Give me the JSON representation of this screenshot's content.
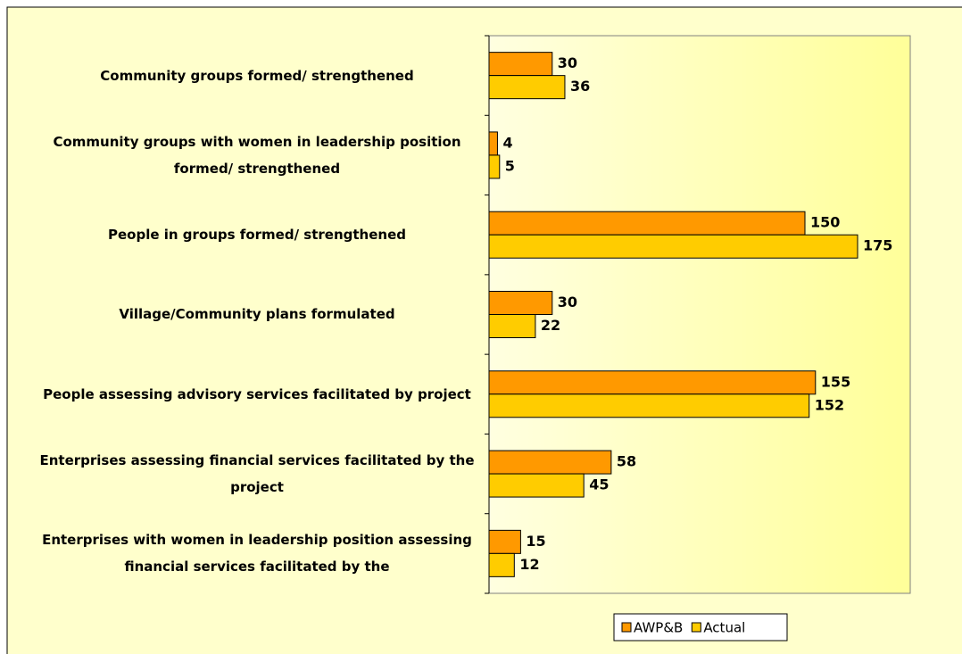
{
  "chart_data": {
    "type": "bar",
    "orientation": "horizontal",
    "categories": [
      "Community groups formed/ strengthened",
      "Community groups with women in leadership position formed/ strengthened",
      "People in groups formed/ strengthened",
      "Village/Community plans formulated",
      "People assessing advisory services facilitated by project",
      "Enterprises assessing financial services facilitated by the project",
      "Enterprises with women in leadership position assessing financial services facilitated by the"
    ],
    "series": [
      {
        "name": "AWP&B",
        "color": "#ff9900",
        "values": [
          30,
          4,
          150,
          30,
          155,
          58,
          15
        ]
      },
      {
        "name": "Actual",
        "color": "#ffcc00",
        "values": [
          36,
          5,
          175,
          22,
          152,
          45,
          12
        ]
      }
    ],
    "xlim": [
      0,
      200
    ],
    "legend": "bottom"
  }
}
